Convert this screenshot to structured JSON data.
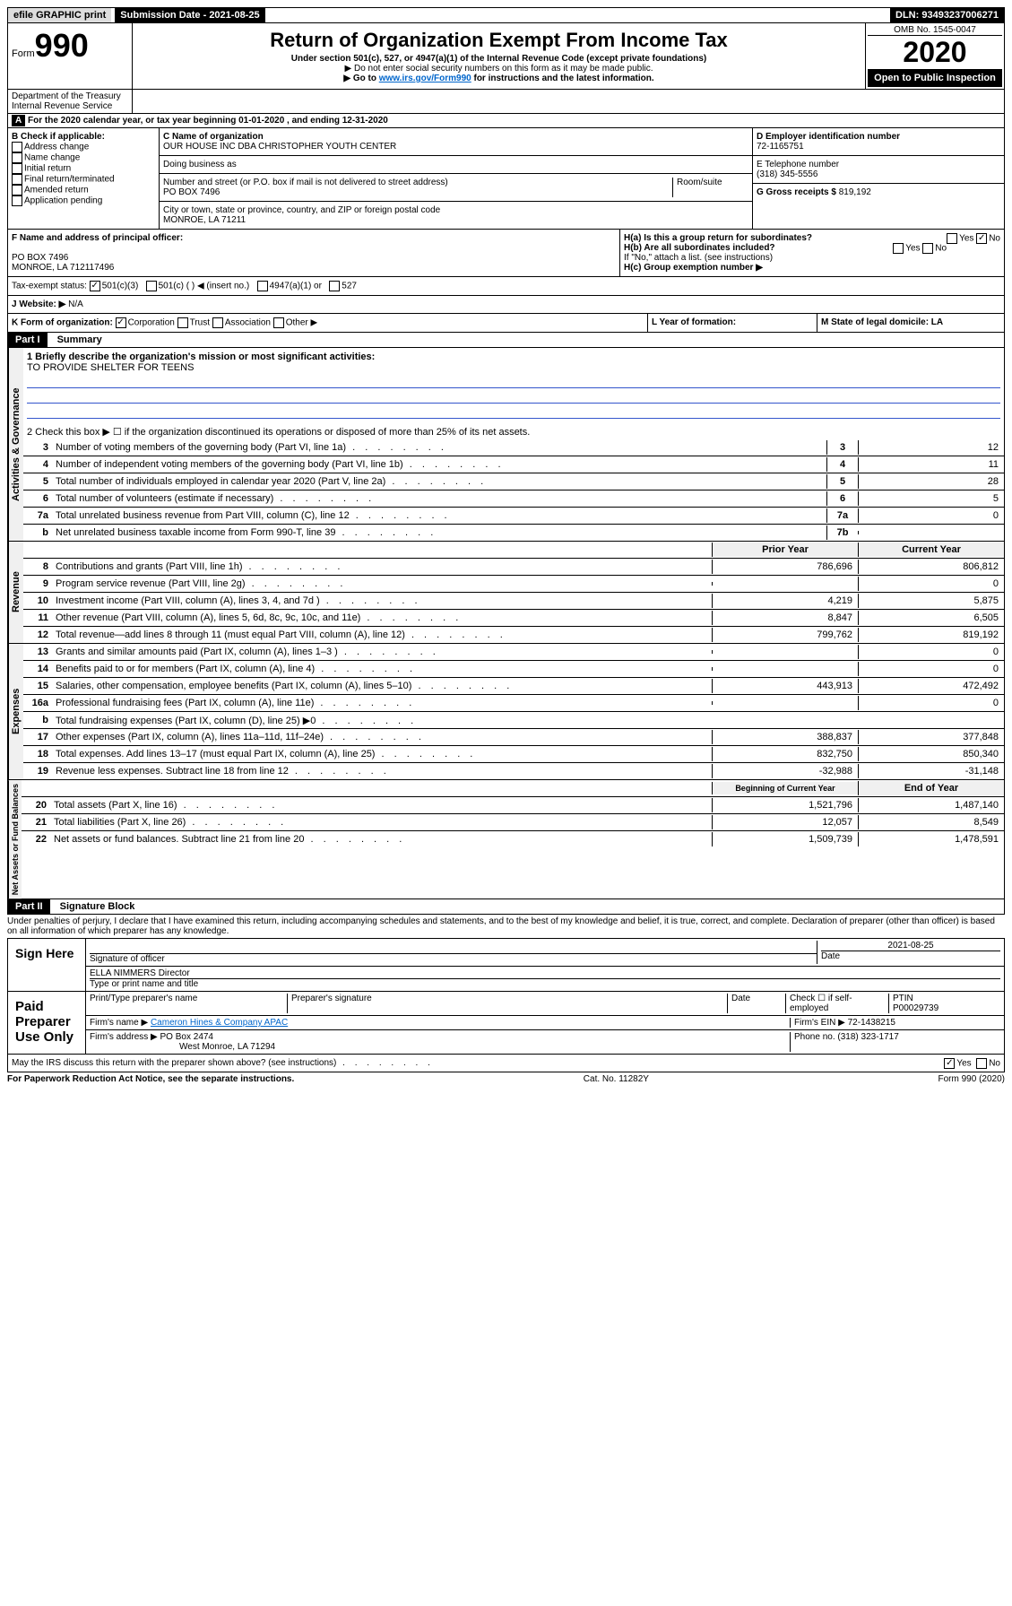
{
  "topbar": {
    "efile": "efile GRAPHIC print",
    "submission": "Submission Date - 2021-08-25",
    "dln": "DLN: 93493237006271"
  },
  "header": {
    "form": "Form",
    "form_num": "990",
    "title": "Return of Organization Exempt From Income Tax",
    "subtitle1": "Under section 501(c), 527, or 4947(a)(1) of the Internal Revenue Code (except private foundations)",
    "subtitle2": "▶ Do not enter social security numbers on this form as it may be made public.",
    "subtitle3_pre": "▶ Go to ",
    "subtitle3_link": "www.irs.gov/Form990",
    "subtitle3_post": " for instructions and the latest information.",
    "omb": "OMB No. 1545-0047",
    "year": "2020",
    "open": "Open to Public Inspection",
    "dept": "Department of the Treasury Internal Revenue Service"
  },
  "a_line": "For the 2020 calendar year, or tax year beginning 01-01-2020    , and ending 12-31-2020",
  "section_b": {
    "label": "B Check if applicable:",
    "items": [
      "Address change",
      "Name change",
      "Initial return",
      "Final return/terminated",
      "Amended return",
      "Application pending"
    ]
  },
  "section_c": {
    "name_label": "C Name of organization",
    "name": "OUR HOUSE INC DBA CHRISTOPHER YOUTH CENTER",
    "dba_label": "Doing business as",
    "addr_label": "Number and street (or P.O. box if mail is not delivered to street address)",
    "room_label": "Room/suite",
    "addr": "PO BOX 7496",
    "city_label": "City or town, state or province, country, and ZIP or foreign postal code",
    "city": "MONROE, LA  71211"
  },
  "section_d": {
    "label": "D Employer identification number",
    "value": "72-1165751"
  },
  "section_e": {
    "label": "E Telephone number",
    "value": "(318) 345-5556"
  },
  "section_g": {
    "label": "G Gross receipts $",
    "value": "819,192"
  },
  "section_f": {
    "label": "F Name and address of principal officer:",
    "addr1": "PO BOX 7496",
    "addr2": "MONROE, LA  712117496"
  },
  "section_h": {
    "ha": "H(a)  Is this a group return for subordinates?",
    "hb": "H(b)  Are all subordinates included?",
    "hb_note": "If \"No,\" attach a list. (see instructions)",
    "hc": "H(c)  Group exemption number ▶",
    "yes": "Yes",
    "no": "No"
  },
  "tax_exempt": {
    "label": "Tax-exempt status:",
    "opt1": "501(c)(3)",
    "opt2": "501(c) (  ) ◀ (insert no.)",
    "opt3": "4947(a)(1) or",
    "opt4": "527"
  },
  "website": {
    "label": "J   Website: ▶",
    "value": "N/A"
  },
  "k_line": {
    "label": "K Form of organization:",
    "opts": [
      "Corporation",
      "Trust",
      "Association",
      "Other ▶"
    ]
  },
  "l_line": {
    "label": "L Year of formation:"
  },
  "m_line": {
    "label": "M State of legal domicile: LA"
  },
  "part1": {
    "title": "Part I",
    "subtitle": "Summary",
    "line1_label": "1  Briefly describe the organization's mission or most significant activities:",
    "line1_value": "TO PROVIDE SHELTER FOR TEENS",
    "line2": "2    Check this box ▶ ☐  if the organization discontinued its operations or disposed of more than 25% of its net assets."
  },
  "activities": {
    "label": "Activities & Governance",
    "rows": [
      {
        "n": "3",
        "t": "Number of voting members of the governing body (Part VI, line 1a)",
        "c": "3",
        "v": "12"
      },
      {
        "n": "4",
        "t": "Number of independent voting members of the governing body (Part VI, line 1b)",
        "c": "4",
        "v": "11"
      },
      {
        "n": "5",
        "t": "Total number of individuals employed in calendar year 2020 (Part V, line 2a)",
        "c": "5",
        "v": "28"
      },
      {
        "n": "6",
        "t": "Total number of volunteers (estimate if necessary)",
        "c": "6",
        "v": "5"
      },
      {
        "n": "7a",
        "t": "Total unrelated business revenue from Part VIII, column (C), line 12",
        "c": "7a",
        "v": "0"
      },
      {
        "n": "b",
        "t": "Net unrelated business taxable income from Form 990-T, line 39",
        "c": "7b",
        "v": ""
      }
    ]
  },
  "revenue": {
    "label": "Revenue",
    "header_prior": "Prior Year",
    "header_current": "Current Year",
    "rows": [
      {
        "n": "8",
        "t": "Contributions and grants (Part VIII, line 1h)",
        "p": "786,696",
        "c": "806,812"
      },
      {
        "n": "9",
        "t": "Program service revenue (Part VIII, line 2g)",
        "p": "",
        "c": "0"
      },
      {
        "n": "10",
        "t": "Investment income (Part VIII, column (A), lines 3, 4, and 7d )",
        "p": "4,219",
        "c": "5,875"
      },
      {
        "n": "11",
        "t": "Other revenue (Part VIII, column (A), lines 5, 6d, 8c, 9c, 10c, and 11e)",
        "p": "8,847",
        "c": "6,505"
      },
      {
        "n": "12",
        "t": "Total revenue—add lines 8 through 11 (must equal Part VIII, column (A), line 12)",
        "p": "799,762",
        "c": "819,192"
      }
    ]
  },
  "expenses": {
    "label": "Expenses",
    "rows": [
      {
        "n": "13",
        "t": "Grants and similar amounts paid (Part IX, column (A), lines 1–3 )",
        "p": "",
        "c": "0"
      },
      {
        "n": "14",
        "t": "Benefits paid to or for members (Part IX, column (A), line 4)",
        "p": "",
        "c": "0"
      },
      {
        "n": "15",
        "t": "Salaries, other compensation, employee benefits (Part IX, column (A), lines 5–10)",
        "p": "443,913",
        "c": "472,492"
      },
      {
        "n": "16a",
        "t": "Professional fundraising fees (Part IX, column (A), line 11e)",
        "p": "",
        "c": "0"
      },
      {
        "n": "b",
        "t": "Total fundraising expenses (Part IX, column (D), line 25) ▶0",
        "p": null,
        "c": null
      },
      {
        "n": "17",
        "t": "Other expenses (Part IX, column (A), lines 11a–11d, 11f–24e)",
        "p": "388,837",
        "c": "377,848"
      },
      {
        "n": "18",
        "t": "Total expenses. Add lines 13–17 (must equal Part IX, column (A), line 25)",
        "p": "832,750",
        "c": "850,340"
      },
      {
        "n": "19",
        "t": "Revenue less expenses. Subtract line 18 from line 12",
        "p": "-32,988",
        "c": "-31,148"
      }
    ]
  },
  "netassets": {
    "label": "Net Assets or Fund Balances",
    "header_begin": "Beginning of Current Year",
    "header_end": "End of Year",
    "rows": [
      {
        "n": "20",
        "t": "Total assets (Part X, line 16)",
        "p": "1,521,796",
        "c": "1,487,140"
      },
      {
        "n": "21",
        "t": "Total liabilities (Part X, line 26)",
        "p": "12,057",
        "c": "8,549"
      },
      {
        "n": "22",
        "t": "Net assets or fund balances. Subtract line 21 from line 20",
        "p": "1,509,739",
        "c": "1,478,591"
      }
    ]
  },
  "part2": {
    "title": "Part II",
    "subtitle": "Signature Block",
    "perjury": "Under penalties of perjury, I declare that I have examined this return, including accompanying schedules and statements, and to the best of my knowledge and belief, it is true, correct, and complete. Declaration of preparer (other than officer) is based on all information of which preparer has any knowledge."
  },
  "sign": {
    "label": "Sign Here",
    "sig_officer": "Signature of officer",
    "date": "2021-08-25",
    "date_label": "Date",
    "name": "ELLA NIMMERS  Director",
    "name_label": "Type or print name and title"
  },
  "paid": {
    "label": "Paid Preparer Use Only",
    "h1": "Print/Type preparer's name",
    "h2": "Preparer's signature",
    "h3": "Date",
    "h4_check": "Check ☐ if self-employed",
    "h5": "PTIN",
    "ptin": "P00029739",
    "firm_name_label": "Firm's name    ▶",
    "firm_name": "Cameron Hines & Company APAC",
    "firm_ein_label": "Firm's EIN ▶",
    "firm_ein": "72-1438215",
    "firm_addr_label": "Firm's address ▶",
    "firm_addr": "PO Box 2474",
    "firm_city": "West Monroe, LA  71294",
    "phone_label": "Phone no.",
    "phone": "(318) 323-1717"
  },
  "discuss": {
    "text": "May the IRS discuss this return with the preparer shown above? (see instructions)",
    "yes": "Yes",
    "no": "No"
  },
  "footer": {
    "left": "For Paperwork Reduction Act Notice, see the separate instructions.",
    "mid": "Cat. No. 11282Y",
    "right": "Form 990 (2020)"
  }
}
